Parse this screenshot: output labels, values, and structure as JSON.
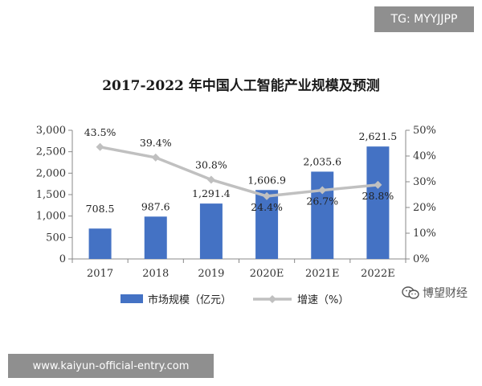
{
  "overlay": {
    "tg_tag": "TG: MYYJJPP",
    "url": "www.kaiyun-official-entry.com",
    "watermark": "博望财经"
  },
  "chart_data": {
    "type": "bar+line",
    "title": "2017-2022 年中国人工智能产业规模及预测",
    "categories": [
      "2017",
      "2018",
      "2019",
      "2020E",
      "2021E",
      "2022E"
    ],
    "series": [
      {
        "name": "市场规模（亿元）",
        "type": "bar",
        "axis": "left",
        "color": "#4472C4",
        "values": [
          708.5,
          987.6,
          1291.4,
          1606.9,
          2035.6,
          2621.5
        ],
        "labels": [
          "708.5",
          "987.6",
          "1,291.4",
          "1,606.9",
          "2,035.6",
          "2,621.5"
        ]
      },
      {
        "name": "增速（%）",
        "type": "line",
        "axis": "right",
        "color": "#C0C0C0",
        "values": [
          43.5,
          39.4,
          30.8,
          24.4,
          26.7,
          28.8
        ],
        "labels": [
          "43.5%",
          "39.4%",
          "30.8%",
          "24.4%",
          "26.7%",
          "28.8%"
        ]
      }
    ],
    "y_left": {
      "range": [
        0,
        3000
      ],
      "ticks": [
        0,
        500,
        1000,
        1500,
        2000,
        2500,
        3000
      ],
      "tick_labels": [
        "0",
        "500",
        "1,000",
        "1,500",
        "2,000",
        "2,500",
        "3,000"
      ]
    },
    "y_right": {
      "range": [
        0,
        50
      ],
      "ticks": [
        0,
        10,
        20,
        30,
        40,
        50
      ],
      "tick_labels": [
        "0%",
        "10%",
        "20%",
        "30%",
        "40%",
        "50%"
      ]
    },
    "grid": false,
    "legend_position": "bottom"
  }
}
